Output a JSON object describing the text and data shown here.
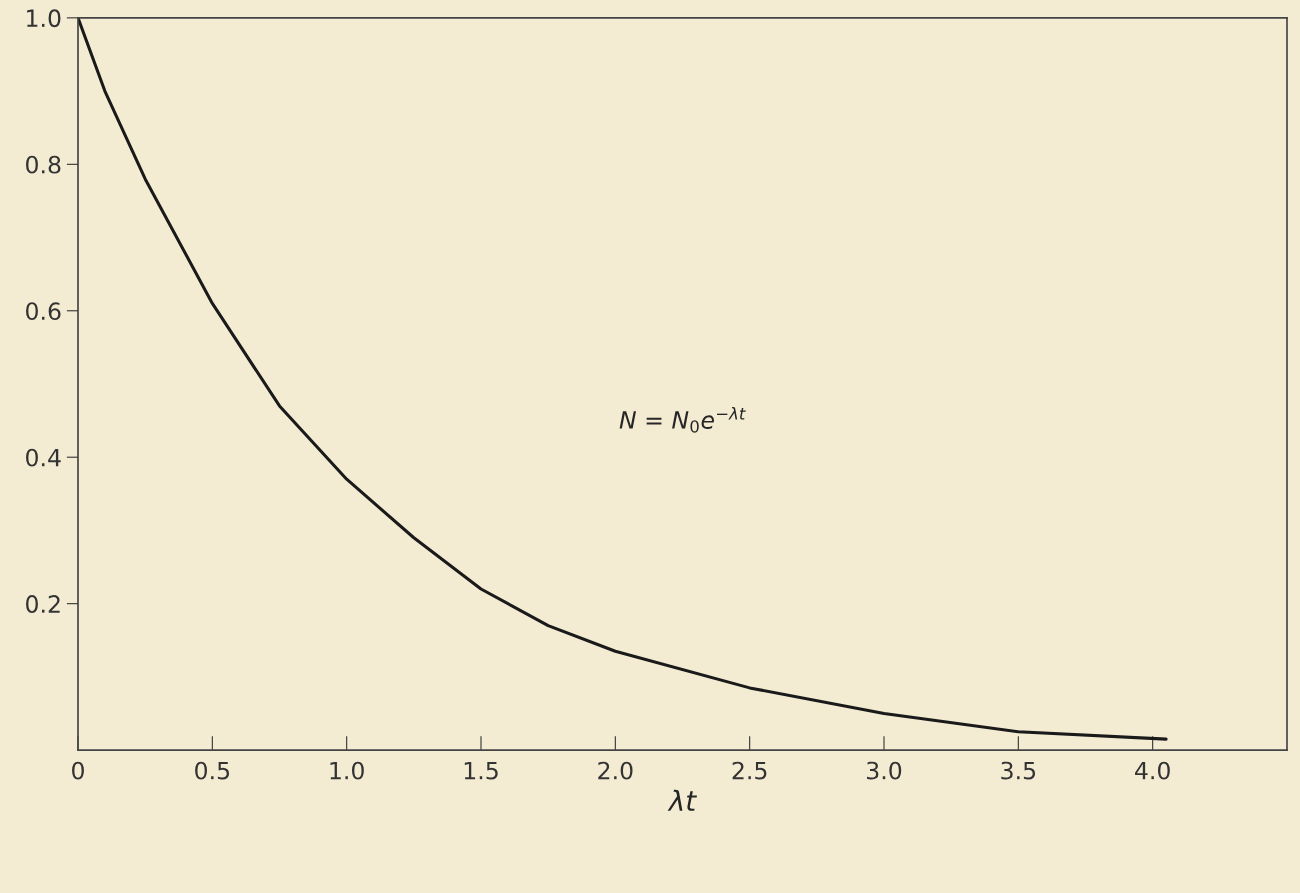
{
  "chart_data": {
    "type": "line",
    "xlabel": "λt",
    "x": [
      0,
      0.1,
      0.25,
      0.5,
      0.75,
      1.0,
      1.25,
      1.5,
      1.75,
      2.0,
      2.5,
      3.0,
      3.5,
      4.05
    ],
    "series": [
      {
        "color": "#1a1a1a",
        "values": [
          1.0,
          0.9,
          0.78,
          0.61,
          0.47,
          0.37,
          0.29,
          0.22,
          0.17,
          0.135,
          0.085,
          0.05,
          0.025,
          0.015
        ]
      }
    ],
    "xlim": [
      0,
      4.5
    ],
    "ylim": [
      0,
      1
    ],
    "xticks": [
      0,
      0.5,
      {
        "value": 1,
        "label": "1.0"
      },
      1.5,
      {
        "value": 2,
        "label": "2.0"
      },
      2.5,
      {
        "value": 3,
        "label": "3.0"
      },
      3.5,
      {
        "value": 4,
        "label": "4.0"
      }
    ],
    "yticks": [
      0.2,
      0.4,
      0.6,
      0.8,
      {
        "value": 1,
        "label": "1.0"
      }
    ],
    "annotations": [
      "N = N$_{0}$e$^{−λt}$"
    ],
    "grid": false,
    "legend": false,
    "marker": "none",
    "line_style": "solid"
  }
}
